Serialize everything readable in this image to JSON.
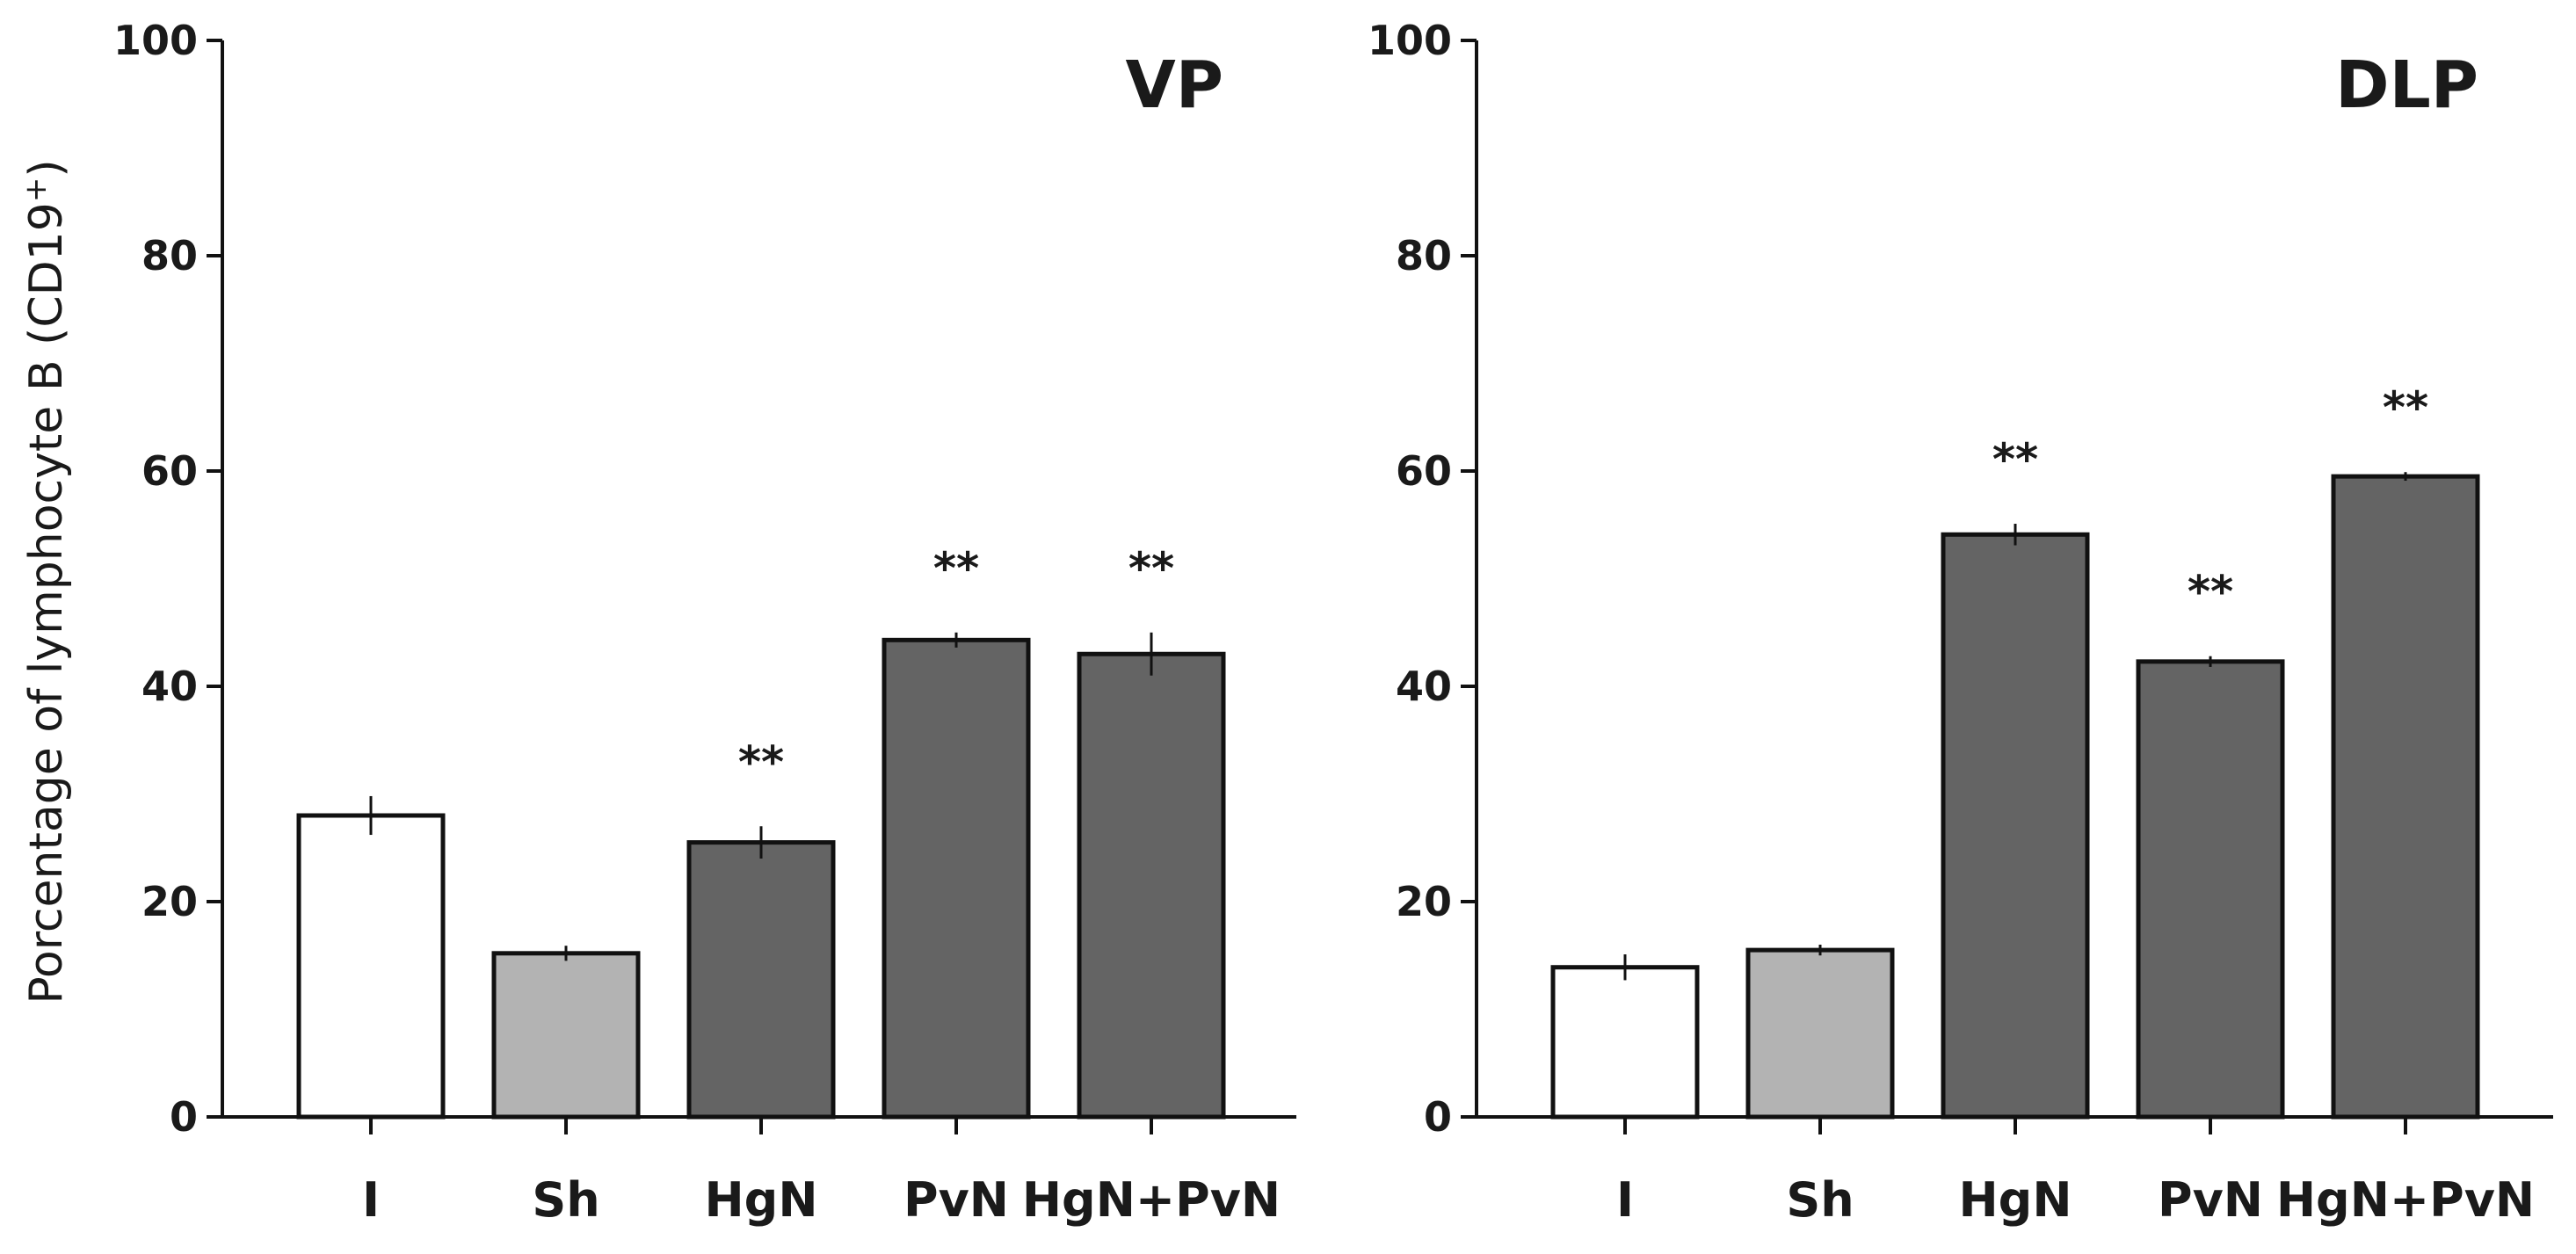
{
  "figure": {
    "ylabel": "Porcentage of lymphocyte B (CD19",
    "ylabel_superscript": "+",
    "ylabel_close": ")"
  },
  "colors": {
    "I": "#ffffff",
    "Sh": "#b3b3b3",
    "HgN": "#646464",
    "PvN": "#646464",
    "HgN+PvN": "#646464",
    "stroke": "#111111"
  },
  "chart_data": [
    {
      "type": "bar",
      "title": "VP",
      "categories": [
        "I",
        "Sh",
        "HgN",
        "PvN",
        "HgN+PvN"
      ],
      "values": [
        28,
        15.2,
        25.5,
        44.3,
        43
      ],
      "errors": [
        1.8,
        0.7,
        1.5,
        0.7,
        2.0
      ],
      "significance": [
        "",
        "",
        "**",
        "**",
        "**"
      ],
      "ylim": [
        0,
        100
      ],
      "yticks": [
        0,
        20,
        40,
        60,
        80,
        100
      ],
      "xlabel": "",
      "ylabel": "Porcentage of lymphocyte B (CD19+)"
    },
    {
      "type": "bar",
      "title": "DLP",
      "categories": [
        "I",
        "Sh",
        "HgN",
        "PvN",
        "HgN+PvN"
      ],
      "values": [
        13.9,
        15.5,
        54.1,
        42.3,
        59.5
      ],
      "errors": [
        1.2,
        0.5,
        1.0,
        0.5,
        0.4
      ],
      "significance": [
        "",
        "",
        "**",
        "**",
        "**"
      ],
      "ylim": [
        0,
        100
      ],
      "yticks": [
        0,
        20,
        40,
        60,
        80,
        100
      ],
      "xlabel": "",
      "ylabel": ""
    }
  ]
}
